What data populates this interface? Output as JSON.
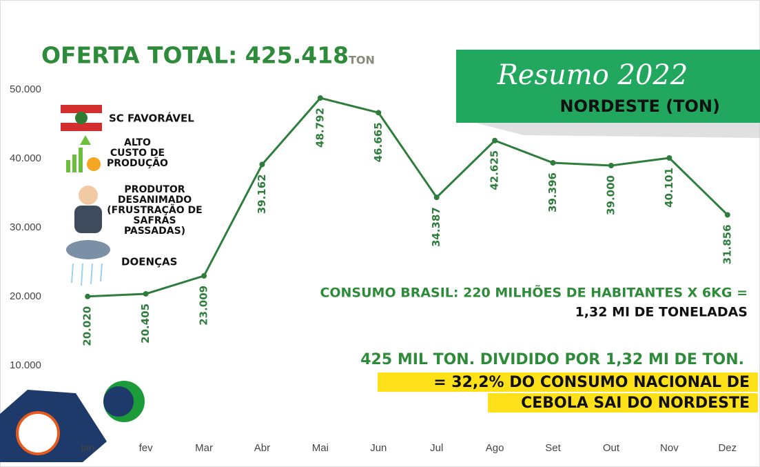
{
  "chart_data": {
    "type": "line",
    "title": "OFERTA TOTAL: 425.418",
    "title_unit": "TON",
    "banner_script": "Resumo 2022",
    "subtitle": "NORDESTE (TON)",
    "categories": [
      "jan",
      "fev",
      "Mar",
      "Abr",
      "Mai",
      "Jun",
      "Jul",
      "Ago",
      "Set",
      "Out",
      "Nov",
      "Dez"
    ],
    "series": [
      {
        "color": "#2f7d3c",
        "values": [
          20020,
          20405,
          23009,
          39162,
          48792,
          46665,
          34387,
          42625,
          39396,
          39000,
          40101,
          31856
        ],
        "value_labels": [
          "20.020",
          "20.405",
          "23.009",
          "39.162",
          "48.792",
          "46.665",
          "34.387",
          "42.625",
          "39.396",
          "39.000",
          "40.101",
          "31.856"
        ]
      }
    ],
    "ylim": [
      0,
      55000
    ],
    "yticks": [
      {
        "value": 10000,
        "label": "10.000"
      },
      {
        "value": 20000,
        "label": "20.000"
      },
      {
        "value": 30000,
        "label": "30.000"
      },
      {
        "value": 40000,
        "label": "40.000"
      },
      {
        "value": 50000,
        "label": "50.000"
      }
    ],
    "grid": false,
    "annotations": {
      "factors": [
        "SC FAVORÁVEL",
        "ALTO CUSTO DE PRODUÇÃO",
        "PRODUTOR DESANIMADO (FRUSTRAÇÃO DE SAFRAS PASSADAS)",
        "DOENÇAS"
      ],
      "consumption_line1": "CONSUMO BRASIL: 220 MILHÕES DE HABITANTES X 6KG =",
      "consumption_line2": "1,32 MI DE TONELADAS",
      "share_line1": "425 MIL TON. DIVIDIDO POR 1,32 MI DE TON.",
      "share_line2": "= 32,2% DO CONSUMO NACIONAL DE",
      "share_line3": "CEBOLA SAI DO NORDESTE"
    }
  }
}
